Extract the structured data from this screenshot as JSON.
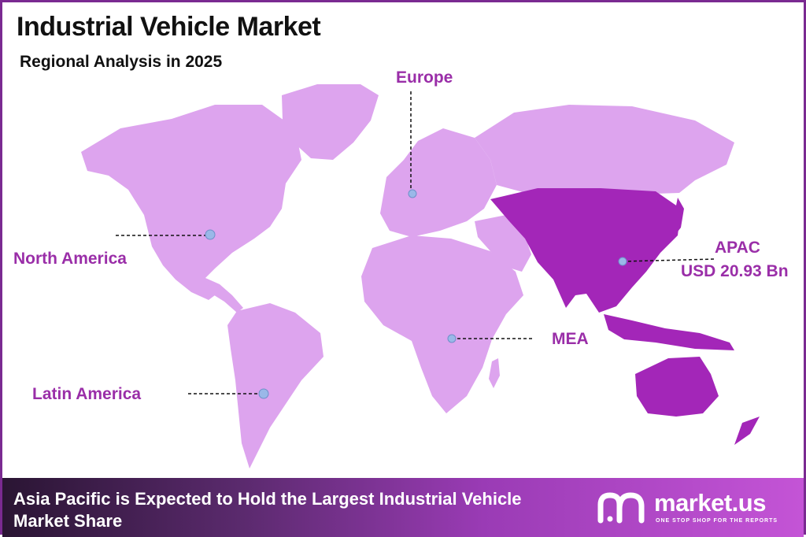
{
  "title": "Industrial Vehicle Market",
  "subtitle": "Regional Analysis in 2025",
  "regions": {
    "europe": "Europe",
    "north_america": "North America",
    "latin_america": "Latin America",
    "mea": "MEA",
    "apac": "APAC",
    "apac_value": "USD 20.93 Bn"
  },
  "colors": {
    "light_region": "#dda4ee",
    "apac_region": "#a326b8",
    "label": "#9a2ea8",
    "marker": "#9ab8e8"
  },
  "highlighted_region": "APAC",
  "banner": {
    "text": "Asia Pacific is Expected to Hold the Largest Industrial Vehicle Market Share"
  },
  "brand": {
    "name": "market.us",
    "tagline": "ONE STOP SHOP FOR THE REPORTS",
    "logo_icon": "market-us-logo-icon"
  }
}
